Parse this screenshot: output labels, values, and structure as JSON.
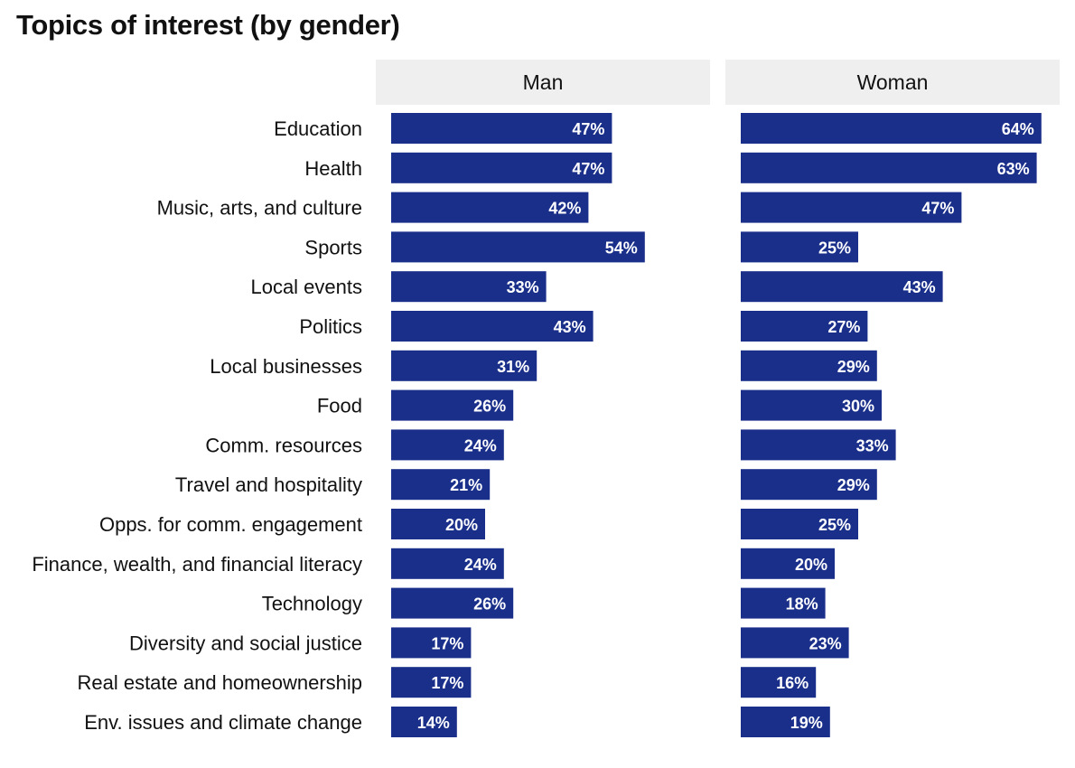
{
  "chart_data": {
    "type": "bar",
    "orientation": "horizontal",
    "title": "Topics of interest (by gender)",
    "categories": [
      "Education",
      "Health",
      "Music, arts, and culture",
      "Sports",
      "Local events",
      "Politics",
      "Local businesses",
      "Food",
      "Comm. resources",
      "Travel and hospitality",
      "Opps. for comm. engagement",
      "Finance, wealth, and financial literacy",
      "Technology",
      "Diversity and social justice",
      "Real estate and homeownership",
      "Env. issues and climate change"
    ],
    "series": [
      {
        "name": "Man",
        "values": [
          47,
          47,
          42,
          54,
          33,
          43,
          31,
          26,
          24,
          21,
          20,
          24,
          26,
          17,
          17,
          14
        ],
        "labels": [
          "47%",
          "47%",
          "42%",
          "54%",
          "33%",
          "43%",
          "31%",
          "26%",
          "24%",
          "21%",
          "20%",
          "24%",
          "26%",
          "17%",
          "17%",
          "14%"
        ]
      },
      {
        "name": "Woman",
        "values": [
          64,
          63,
          47,
          25,
          43,
          27,
          29,
          30,
          33,
          29,
          25,
          20,
          18,
          23,
          16,
          19
        ],
        "labels": [
          "64%",
          "63%",
          "47%",
          "25%",
          "43%",
          "27%",
          "29%",
          "30%",
          "33%",
          "29%",
          "25%",
          "20%",
          "18%",
          "23%",
          "16%",
          "19%"
        ]
      }
    ],
    "xlim": [
      0,
      70
    ],
    "grid": false,
    "legend": "panel headers",
    "bar_color": "#1a2f8a"
  }
}
